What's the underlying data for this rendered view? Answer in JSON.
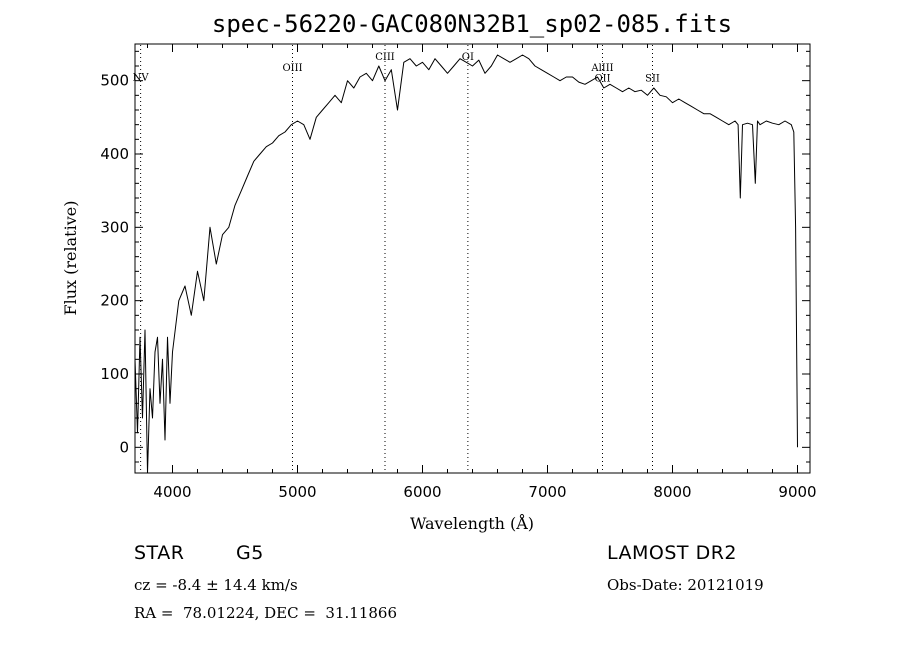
{
  "chart_data": {
    "type": "line",
    "title": "spec-56220-GAC080N32B1_sp02-085.fits",
    "xlabel": "Wavelength (Å)",
    "ylabel": "Flux (relative)",
    "xlim": [
      3700,
      9100
    ],
    "ylim": [
      -35,
      550
    ],
    "xticks": [
      4000,
      5000,
      6000,
      7000,
      8000,
      9000
    ],
    "yticks": [
      0,
      100,
      200,
      300,
      400,
      500
    ],
    "grid": false,
    "series": [
      {
        "x": [
          3700,
          3720,
          3740,
          3760,
          3780,
          3800,
          3820,
          3840,
          3860,
          3880,
          3900,
          3920,
          3940,
          3960,
          3980,
          4000,
          4050,
          4100,
          4150,
          4200,
          4250,
          4300,
          4350,
          4400,
          4450,
          4500,
          4550,
          4600,
          4650,
          4700,
          4750,
          4800,
          4850,
          4900,
          4950,
          5000,
          5050,
          5100,
          5150,
          5200,
          5250,
          5300,
          5350,
          5400,
          5450,
          5500,
          5550,
          5600,
          5650,
          5700,
          5750,
          5800,
          5850,
          5900,
          5950,
          6000,
          6050,
          6100,
          6150,
          6200,
          6250,
          6300,
          6350,
          6400,
          6450,
          6500,
          6550,
          6600,
          6650,
          6700,
          6750,
          6800,
          6850,
          6900,
          6950,
          7000,
          7050,
          7100,
          7150,
          7200,
          7250,
          7300,
          7350,
          7400,
          7450,
          7500,
          7550,
          7600,
          7650,
          7700,
          7750,
          7800,
          7850,
          7900,
          7950,
          8000,
          8050,
          8100,
          8150,
          8200,
          8250,
          8300,
          8350,
          8400,
          8450,
          8500,
          8525,
          8542,
          8560,
          8600,
          8640,
          8662,
          8680,
          8700,
          8750,
          8800,
          8850,
          8900,
          8950,
          8970,
          8985,
          9000
        ],
        "y": [
          120,
          20,
          150,
          40,
          160,
          -35,
          80,
          40,
          130,
          150,
          60,
          120,
          10,
          150,
          60,
          130,
          200,
          220,
          180,
          240,
          200,
          300,
          250,
          290,
          300,
          330,
          350,
          370,
          390,
          400,
          410,
          415,
          425,
          430,
          440,
          445,
          440,
          420,
          450,
          460,
          470,
          480,
          470,
          500,
          490,
          505,
          510,
          500,
          520,
          500,
          515,
          460,
          525,
          530,
          520,
          525,
          515,
          530,
          520,
          510,
          520,
          530,
          525,
          520,
          528,
          510,
          520,
          535,
          530,
          525,
          530,
          535,
          530,
          520,
          515,
          510,
          505,
          500,
          505,
          505,
          498,
          495,
          500,
          505,
          490,
          495,
          490,
          485,
          490,
          485,
          487,
          480,
          490,
          480,
          478,
          470,
          475,
          470,
          465,
          460,
          455,
          455,
          450,
          445,
          440,
          445,
          440,
          340,
          440,
          442,
          440,
          360,
          445,
          440,
          445,
          442,
          440,
          445,
          440,
          430,
          300,
          0
        ]
      }
    ],
    "lines": [
      {
        "label": "NV",
        "x": 3745,
        "label_y": 500
      },
      {
        "label": "OIII",
        "x": 4960,
        "label_y": 513
      },
      {
        "label": "CIII",
        "x": 5700,
        "label_y": 528
      },
      {
        "label": "OI",
        "x": 6363,
        "label_y": 528
      },
      {
        "label": "AlIII",
        "x": 7440,
        "label_y": 513
      },
      {
        "label": "OII",
        "x": 7440,
        "label_y": 499
      },
      {
        "label": "SII",
        "x": 7840,
        "label_y": 499
      }
    ]
  },
  "info": {
    "object_class": "STAR",
    "subclass": "G5",
    "survey": "LAMOST DR2",
    "cz": "cz = -8.4 ± 14.4 km/s",
    "obs_date": "Obs-Date: 20121019",
    "coords": "RA =  78.01224, DEC =  31.11866"
  }
}
